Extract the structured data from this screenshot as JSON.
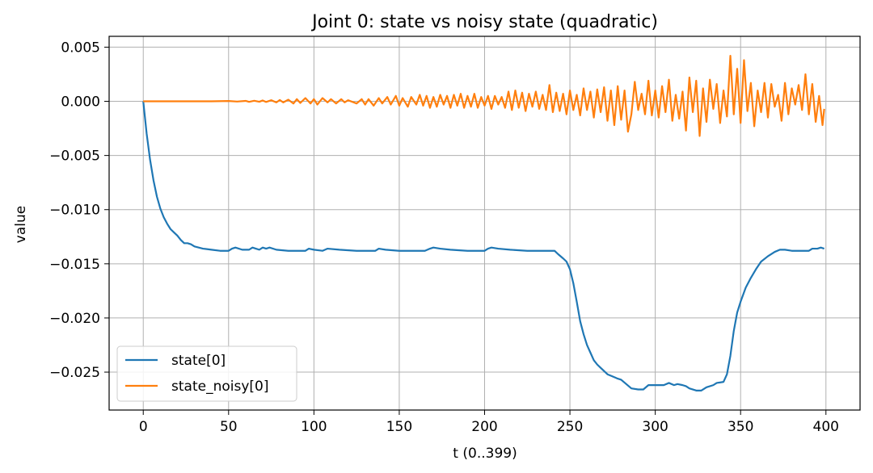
{
  "chart_data": {
    "type": "line",
    "title": "Joint 0: state vs noisy state (quadratic)",
    "xlabel": "t (0..399)",
    "ylabel": "value",
    "xlim": [
      -20,
      420
    ],
    "ylim": [
      -0.0285,
      0.006
    ],
    "xticks": [
      0,
      50,
      100,
      150,
      200,
      250,
      300,
      350,
      400
    ],
    "xtick_labels": [
      "0",
      "50",
      "100",
      "150",
      "200",
      "250",
      "300",
      "350",
      "400"
    ],
    "yticks": [
      0.005,
      0.0,
      -0.005,
      -0.01,
      -0.015,
      -0.02,
      -0.025
    ],
    "ytick_labels": [
      "0.005",
      "0.000",
      "−0.005",
      "−0.010",
      "−0.015",
      "−0.020",
      "−0.025"
    ],
    "grid": true,
    "legend_position": "lower-left",
    "series": [
      {
        "name": "state[0]",
        "color": "#1f77b4",
        "points": [
          [
            0,
            0.0
          ],
          [
            2,
            -0.003
          ],
          [
            4,
            -0.0054
          ],
          [
            6,
            -0.0073
          ],
          [
            8,
            -0.0088
          ],
          [
            10,
            -0.0099
          ],
          [
            12,
            -0.0107
          ],
          [
            14,
            -0.0113
          ],
          [
            16,
            -0.0118
          ],
          [
            18,
            -0.0121
          ],
          [
            20,
            -0.0124
          ],
          [
            22,
            -0.0128
          ],
          [
            24,
            -0.0131
          ],
          [
            26,
            -0.0131
          ],
          [
            28,
            -0.0132
          ],
          [
            30,
            -0.0134
          ],
          [
            35,
            -0.0136
          ],
          [
            40,
            -0.0137
          ],
          [
            45,
            -0.0138
          ],
          [
            50,
            -0.0138
          ],
          [
            52,
            -0.0136
          ],
          [
            54,
            -0.0135
          ],
          [
            58,
            -0.0137
          ],
          [
            62,
            -0.0137
          ],
          [
            64,
            -0.0135
          ],
          [
            66,
            -0.0136
          ],
          [
            68,
            -0.0137
          ],
          [
            70,
            -0.0135
          ],
          [
            72,
            -0.0136
          ],
          [
            74,
            -0.0135
          ],
          [
            78,
            -0.0137
          ],
          [
            85,
            -0.0138
          ],
          [
            95,
            -0.0138
          ],
          [
            97,
            -0.0136
          ],
          [
            100,
            -0.0137
          ],
          [
            105,
            -0.0138
          ],
          [
            108,
            -0.0136
          ],
          [
            115,
            -0.0137
          ],
          [
            125,
            -0.0138
          ],
          [
            136,
            -0.0138
          ],
          [
            138,
            -0.0136
          ],
          [
            142,
            -0.0137
          ],
          [
            150,
            -0.0138
          ],
          [
            165,
            -0.0138
          ],
          [
            168,
            -0.0136
          ],
          [
            170,
            -0.0135
          ],
          [
            174,
            -0.0136
          ],
          [
            180,
            -0.0137
          ],
          [
            190,
            -0.0138
          ],
          [
            200,
            -0.0138
          ],
          [
            202,
            -0.0136
          ],
          [
            204,
            -0.0135
          ],
          [
            208,
            -0.0136
          ],
          [
            215,
            -0.0137
          ],
          [
            225,
            -0.0138
          ],
          [
            241,
            -0.0138
          ],
          [
            243,
            -0.0141
          ],
          [
            246,
            -0.0145
          ],
          [
            248,
            -0.0148
          ],
          [
            250,
            -0.0155
          ],
          [
            252,
            -0.0168
          ],
          [
            254,
            -0.0185
          ],
          [
            256,
            -0.0203
          ],
          [
            258,
            -0.0215
          ],
          [
            260,
            -0.0225
          ],
          [
            262,
            -0.0232
          ],
          [
            264,
            -0.0239
          ],
          [
            266,
            -0.0243
          ],
          [
            268,
            -0.0246
          ],
          [
            270,
            -0.0249
          ],
          [
            272,
            -0.0252
          ],
          [
            275,
            -0.0254
          ],
          [
            278,
            -0.0256
          ],
          [
            280,
            -0.0257
          ],
          [
            283,
            -0.0261
          ],
          [
            286,
            -0.0265
          ],
          [
            290,
            -0.0266
          ],
          [
            293,
            -0.0266
          ],
          [
            296,
            -0.0262
          ],
          [
            300,
            -0.0262
          ],
          [
            305,
            -0.0262
          ],
          [
            308,
            -0.026
          ],
          [
            311,
            -0.0262
          ],
          [
            313,
            -0.0261
          ],
          [
            316,
            -0.0262
          ],
          [
            318,
            -0.0263
          ],
          [
            320,
            -0.0265
          ],
          [
            324,
            -0.0267
          ],
          [
            327,
            -0.0267
          ],
          [
            330,
            -0.0264
          ],
          [
            334,
            -0.0262
          ],
          [
            336,
            -0.026
          ],
          [
            340,
            -0.0259
          ],
          [
            342,
            -0.0252
          ],
          [
            344,
            -0.0235
          ],
          [
            346,
            -0.0212
          ],
          [
            348,
            -0.0195
          ],
          [
            350,
            -0.0185
          ],
          [
            353,
            -0.0172
          ],
          [
            356,
            -0.0163
          ],
          [
            359,
            -0.0155
          ],
          [
            362,
            -0.0148
          ],
          [
            366,
            -0.0143
          ],
          [
            370,
            -0.0139
          ],
          [
            373,
            -0.0137
          ],
          [
            376,
            -0.0137
          ],
          [
            380,
            -0.0138
          ],
          [
            385,
            -0.0138
          ],
          [
            390,
            -0.0138
          ],
          [
            392,
            -0.0136
          ],
          [
            395,
            -0.0136
          ],
          [
            397,
            -0.0135
          ],
          [
            399,
            -0.0136
          ]
        ]
      },
      {
        "name": "state_noisy[0]",
        "color": "#ff7f0e",
        "points": [
          [
            0,
            0.0
          ],
          [
            40,
            0.0
          ],
          [
            50,
            3e-05
          ],
          [
            55,
            -2e-05
          ],
          [
            60,
            4e-05
          ],
          [
            62,
            -5e-05
          ],
          [
            65,
            5e-05
          ],
          [
            68,
            -4e-05
          ],
          [
            70,
            8e-05
          ],
          [
            72,
            -6e-05
          ],
          [
            75,
            0.0001
          ],
          [
            78,
            -0.0001
          ],
          [
            80,
            0.00012
          ],
          [
            82,
            -0.0001
          ],
          [
            85,
            0.00015
          ],
          [
            88,
            -0.0002
          ],
          [
            90,
            0.0002
          ],
          [
            92,
            -0.00015
          ],
          [
            95,
            0.0003
          ],
          [
            98,
            -0.0002
          ],
          [
            100,
            0.0002
          ],
          [
            102,
            -0.0003
          ],
          [
            105,
            0.0003
          ],
          [
            108,
            -0.0001
          ],
          [
            110,
            0.0002
          ],
          [
            113,
            -0.0002
          ],
          [
            116,
            0.0002
          ],
          [
            118,
            -0.0001
          ],
          [
            120,
            0.0001
          ],
          [
            125,
            -0.0002
          ],
          [
            128,
            0.0002
          ],
          [
            130,
            -0.0003
          ],
          [
            132,
            0.0002
          ],
          [
            135,
            -0.0004
          ],
          [
            138,
            0.0003
          ],
          [
            140,
            -0.0002
          ],
          [
            143,
            0.0004
          ],
          [
            145,
            -0.0003
          ],
          [
            148,
            0.0005
          ],
          [
            150,
            -0.0004
          ],
          [
            152,
            0.0003
          ],
          [
            155,
            -0.0005
          ],
          [
            157,
            0.0004
          ],
          [
            160,
            -0.0003
          ],
          [
            162,
            0.0006
          ],
          [
            164,
            -0.0004
          ],
          [
            166,
            0.0005
          ],
          [
            168,
            -0.0006
          ],
          [
            170,
            0.0004
          ],
          [
            172,
            -0.0005
          ],
          [
            174,
            0.0006
          ],
          [
            176,
            -0.0003
          ],
          [
            178,
            0.0005
          ],
          [
            180,
            -0.0006
          ],
          [
            182,
            0.0006
          ],
          [
            184,
            -0.0004
          ],
          [
            186,
            0.0007
          ],
          [
            188,
            -0.0006
          ],
          [
            190,
            0.0005
          ],
          [
            192,
            -0.0005
          ],
          [
            194,
            0.0007
          ],
          [
            196,
            -0.0006
          ],
          [
            198,
            0.0004
          ],
          [
            200,
            -0.0004
          ],
          [
            202,
            0.0005
          ],
          [
            204,
            -0.0007
          ],
          [
            206,
            0.0005
          ],
          [
            208,
            -0.0003
          ],
          [
            210,
            0.0004
          ],
          [
            212,
            -0.0006
          ],
          [
            214,
            0.0009
          ],
          [
            216,
            -0.0008
          ],
          [
            218,
            0.001
          ],
          [
            220,
            -0.0006
          ],
          [
            222,
            0.0008
          ],
          [
            224,
            -0.0009
          ],
          [
            226,
            0.0007
          ],
          [
            228,
            -0.0005
          ],
          [
            230,
            0.0009
          ],
          [
            232,
            -0.0007
          ],
          [
            234,
            0.0006
          ],
          [
            236,
            -0.0008
          ],
          [
            238,
            0.0015
          ],
          [
            240,
            -0.001
          ],
          [
            242,
            0.0008
          ],
          [
            244,
            -0.0009
          ],
          [
            246,
            0.0007
          ],
          [
            248,
            -0.0012
          ],
          [
            250,
            0.001
          ],
          [
            252,
            -0.0008
          ],
          [
            254,
            0.0006
          ],
          [
            256,
            -0.0013
          ],
          [
            258,
            0.0012
          ],
          [
            260,
            -0.0008
          ],
          [
            262,
            0.0009
          ],
          [
            264,
            -0.0015
          ],
          [
            266,
            0.0011
          ],
          [
            268,
            -0.001
          ],
          [
            270,
            0.0013
          ],
          [
            272,
            -0.0018
          ],
          [
            274,
            0.001
          ],
          [
            276,
            -0.0022
          ],
          [
            278,
            0.0014
          ],
          [
            280,
            -0.0017
          ],
          [
            282,
            0.001
          ],
          [
            284,
            -0.0028
          ],
          [
            286,
            -0.0012
          ],
          [
            288,
            0.0018
          ],
          [
            290,
            -0.0008
          ],
          [
            292,
            0.0007
          ],
          [
            294,
            -0.0012
          ],
          [
            296,
            0.0019
          ],
          [
            298,
            -0.0013
          ],
          [
            300,
            0.001
          ],
          [
            302,
            -0.0015
          ],
          [
            304,
            0.0014
          ],
          [
            306,
            -0.001
          ],
          [
            308,
            0.002
          ],
          [
            310,
            -0.0018
          ],
          [
            312,
            0.0006
          ],
          [
            314,
            -0.0016
          ],
          [
            316,
            0.0009
          ],
          [
            318,
            -0.0027
          ],
          [
            320,
            0.0022
          ],
          [
            322,
            -0.001
          ],
          [
            324,
            0.0019
          ],
          [
            326,
            -0.0032
          ],
          [
            328,
            0.0012
          ],
          [
            330,
            -0.0019
          ],
          [
            332,
            0.002
          ],
          [
            334,
            -0.0007
          ],
          [
            336,
            0.0016
          ],
          [
            338,
            -0.002
          ],
          [
            340,
            0.001
          ],
          [
            342,
            -0.0014
          ],
          [
            344,
            0.0042
          ],
          [
            346,
            -0.0012
          ],
          [
            348,
            0.003
          ],
          [
            350,
            -0.002
          ],
          [
            352,
            0.0038
          ],
          [
            354,
            -0.0009
          ],
          [
            356,
            0.0017
          ],
          [
            358,
            -0.0023
          ],
          [
            360,
            0.001
          ],
          [
            362,
            -0.001
          ],
          [
            364,
            0.0017
          ],
          [
            366,
            -0.0015
          ],
          [
            368,
            0.0016
          ],
          [
            370,
            -0.0005
          ],
          [
            372,
            0.0006
          ],
          [
            374,
            -0.0018
          ],
          [
            376,
            0.0017
          ],
          [
            378,
            -0.0012
          ],
          [
            380,
            0.0012
          ],
          [
            382,
            -0.0003
          ],
          [
            384,
            0.0015
          ],
          [
            386,
            -0.0008
          ],
          [
            388,
            0.0025
          ],
          [
            390,
            -0.0012
          ],
          [
            392,
            0.0016
          ],
          [
            394,
            -0.0019
          ],
          [
            396,
            0.0005
          ],
          [
            398,
            -0.0022
          ],
          [
            399,
            -0.0007
          ]
        ]
      }
    ]
  }
}
